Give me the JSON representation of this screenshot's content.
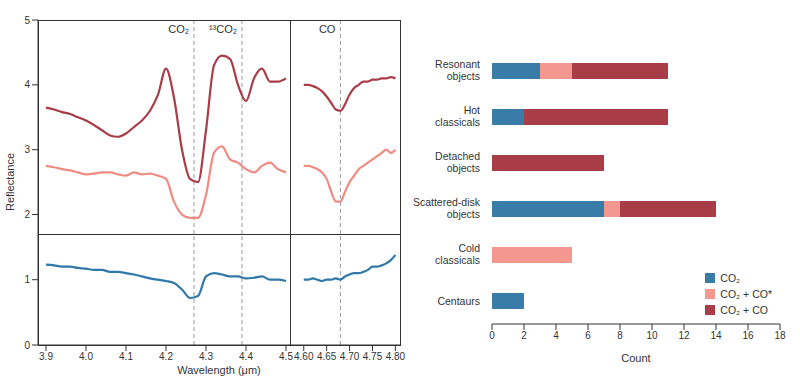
{
  "chart_data": [
    {
      "type": "line",
      "y_label": "Reflectance",
      "tick_labels": "y",
      "x": [
        3.9,
        3.92,
        3.94,
        3.96,
        3.98,
        4.0,
        4.02,
        4.04,
        4.06,
        4.08,
        4.1,
        4.12,
        4.14,
        4.16,
        4.18,
        4.2,
        4.22,
        4.24,
        4.26,
        4.28,
        4.3,
        4.32,
        4.34,
        4.36,
        4.38,
        4.4,
        4.42,
        4.44,
        4.46,
        4.48,
        4.5
      ],
      "xlim": [
        3.88,
        4.51
      ],
      "ylim": [
        1.7,
        5
      ],
      "yticks": [
        2,
        3,
        4,
        5
      ],
      "annotations": [
        {
          "x": 4.27,
          "text": "CO₂"
        },
        {
          "x": 4.39,
          "text": "¹³CO₂"
        }
      ],
      "series": [
        {
          "color": "#a83d48",
          "values": [
            3.65,
            3.62,
            3.58,
            3.55,
            3.5,
            3.45,
            3.38,
            3.3,
            3.22,
            3.2,
            3.25,
            3.35,
            3.45,
            3.6,
            3.85,
            4.25,
            3.8,
            3.0,
            2.55,
            2.5,
            3.3,
            4.3,
            4.45,
            4.4,
            4.0,
            3.75,
            4.1,
            4.25,
            4.05,
            4.05,
            4.1
          ]
        },
        {
          "color": "#f08b82",
          "values": [
            2.75,
            2.73,
            2.7,
            2.68,
            2.65,
            2.62,
            2.63,
            2.65,
            2.65,
            2.62,
            2.6,
            2.65,
            2.62,
            2.63,
            2.6,
            2.55,
            2.2,
            2.0,
            1.95,
            1.95,
            2.3,
            2.95,
            3.05,
            2.85,
            2.8,
            2.7,
            2.65,
            2.75,
            2.8,
            2.7,
            2.65
          ]
        }
      ]
    },
    {
      "type": "line",
      "tick_labels": false,
      "x": [
        4.6,
        4.61,
        4.62,
        4.63,
        4.64,
        4.65,
        4.66,
        4.67,
        4.68,
        4.69,
        4.7,
        4.71,
        4.72,
        4.73,
        4.74,
        4.75,
        4.76,
        4.77,
        4.78,
        4.79,
        4.8
      ],
      "xlim": [
        4.57,
        4.81
      ],
      "ylim": [
        1.7,
        5
      ],
      "annotations": [
        {
          "x": 4.68,
          "text": "CO"
        }
      ],
      "series": [
        {
          "color": "#a83d48",
          "values": [
            4.0,
            4.0,
            3.98,
            3.95,
            3.9,
            3.82,
            3.72,
            3.62,
            3.6,
            3.7,
            3.85,
            3.95,
            4.0,
            4.05,
            4.05,
            4.08,
            4.08,
            4.1,
            4.1,
            4.12,
            4.1
          ]
        },
        {
          "color": "#f08b82",
          "values": [
            2.75,
            2.75,
            2.73,
            2.7,
            2.65,
            2.55,
            2.35,
            2.2,
            2.2,
            2.35,
            2.5,
            2.6,
            2.7,
            2.75,
            2.8,
            2.85,
            2.9,
            2.95,
            3.0,
            2.95,
            3.0
          ]
        }
      ]
    },
    {
      "type": "line",
      "x_label": "Wavelength (μm)",
      "x": [
        3.9,
        3.92,
        3.94,
        3.96,
        3.98,
        4.0,
        4.02,
        4.04,
        4.06,
        4.08,
        4.1,
        4.12,
        4.14,
        4.16,
        4.18,
        4.2,
        4.22,
        4.24,
        4.26,
        4.28,
        4.3,
        4.32,
        4.34,
        4.36,
        4.38,
        4.4,
        4.42,
        4.44,
        4.46,
        4.48,
        4.5
      ],
      "xlim": [
        3.88,
        4.51
      ],
      "xticks": [
        3.9,
        {
          "value": 4,
          "label": "4.0"
        },
        4.1,
        4.2,
        4.3,
        4.4,
        4.5
      ],
      "ylim": [
        0,
        1.7
      ],
      "yticks": [
        0,
        1
      ],
      "reference_lines": [
        4.27,
        4.39
      ],
      "series": [
        {
          "color": "#2f78a8",
          "values": [
            1.23,
            1.22,
            1.2,
            1.2,
            1.18,
            1.17,
            1.15,
            1.15,
            1.12,
            1.12,
            1.1,
            1.08,
            1.05,
            1.02,
            1.0,
            0.98,
            0.95,
            0.85,
            0.72,
            0.75,
            1.05,
            1.1,
            1.08,
            1.05,
            1.05,
            1.02,
            1.03,
            1.05,
            1.0,
            1.0,
            0.98
          ]
        }
      ]
    },
    {
      "type": "line",
      "tick_labels": "x",
      "x": [
        4.6,
        4.61,
        4.62,
        4.63,
        4.64,
        4.65,
        4.66,
        4.67,
        4.68,
        4.69,
        4.7,
        4.71,
        4.72,
        4.73,
        4.74,
        4.75,
        4.76,
        4.77,
        4.78,
        4.79,
        4.8
      ],
      "xlim": [
        4.57,
        4.81
      ],
      "xticks": [
        {
          "value": 4.6,
          "label": "4.60"
        },
        4.65,
        {
          "value": 4.7,
          "label": "4.70"
        },
        4.75,
        {
          "value": 4.8,
          "label": "4.80"
        }
      ],
      "ylim": [
        0,
        1.7
      ],
      "reference_lines": [
        4.68
      ],
      "series": [
        {
          "color": "#2f78a8",
          "values": [
            1.0,
            1.0,
            1.02,
            1.0,
            0.98,
            1.0,
            1.0,
            1.02,
            1.0,
            1.05,
            1.08,
            1.1,
            1.1,
            1.12,
            1.15,
            1.2,
            1.2,
            1.22,
            1.25,
            1.3,
            1.38
          ]
        }
      ]
    },
    {
      "type": "bar",
      "orientation": "horizontal",
      "stacked": true,
      "legend": "lower right",
      "x_label": "Count",
      "categories": [
        "Resonant objects",
        "Hot classicals",
        "Detached objects",
        "Scattered-disk objects",
        "Cold classicals",
        "Centaurs"
      ],
      "xlim": [
        0,
        18
      ],
      "xticks": [
        0,
        2,
        4,
        6,
        8,
        10,
        12,
        14,
        16,
        18
      ],
      "series": [
        {
          "name": "CO₂",
          "color": "#3a7ca8",
          "values": [
            3,
            2,
            0,
            7,
            0,
            2
          ]
        },
        {
          "name": "CO₂ + CO*",
          "color": "#f4978e",
          "values": [
            2,
            0,
            0,
            1,
            5,
            0
          ]
        },
        {
          "name": "CO₂ + CO",
          "color": "#a83d48",
          "values": [
            6,
            9,
            7,
            6,
            0,
            0
          ]
        }
      ]
    }
  ]
}
